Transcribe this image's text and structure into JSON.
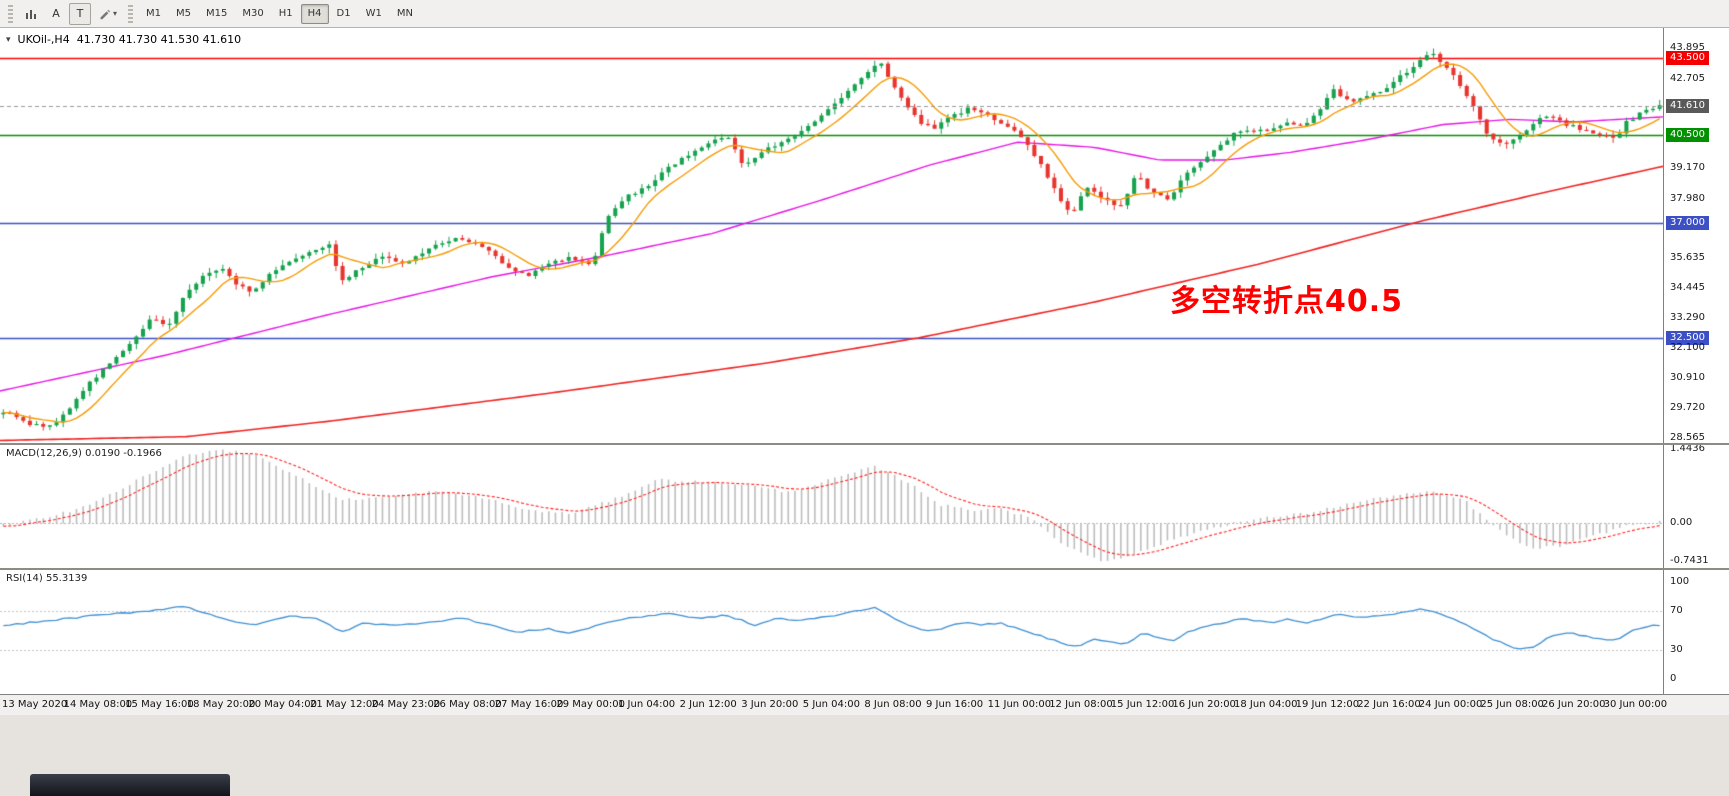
{
  "toolbar": {
    "cursor_label": "A",
    "text_label": "T",
    "timeframes": [
      {
        "label": "M1"
      },
      {
        "label": "M5"
      },
      {
        "label": "M15"
      },
      {
        "label": "M30"
      },
      {
        "label": "H1"
      },
      {
        "label": "H4",
        "active": true
      },
      {
        "label": "D1"
      },
      {
        "label": "W1"
      },
      {
        "label": "MN"
      }
    ]
  },
  "chart": {
    "symbol": "UKOil-,H4",
    "ohlc": "41.730 41.730 41.530 41.610",
    "current_price": "41.610",
    "annotation": {
      "text": "多空转折点40.5",
      "color": "#ff0000"
    }
  },
  "price_axis": {
    "labels": [
      {
        "text": "43.895",
        "value": 43.895,
        "style": "plain"
      },
      {
        "text": "43.500",
        "value": 43.5,
        "style": "red"
      },
      {
        "text": "42.705",
        "value": 42.705,
        "style": "plain"
      },
      {
        "text": "41.610",
        "value": 41.61,
        "style": "current"
      },
      {
        "text": "40.500",
        "value": 40.5,
        "style": "green"
      },
      {
        "text": "39.170",
        "value": 39.17,
        "style": "plain"
      },
      {
        "text": "37.980",
        "value": 37.98,
        "style": "plain"
      },
      {
        "text": "37.000",
        "value": 37.0,
        "style": "blue"
      },
      {
        "text": "35.635",
        "value": 35.635,
        "style": "plain"
      },
      {
        "text": "34.445",
        "value": 34.445,
        "style": "plain"
      },
      {
        "text": "33.290",
        "value": 33.29,
        "style": "plain"
      },
      {
        "text": "32.500",
        "value": 32.5,
        "style": "blue"
      },
      {
        "text": "32.100",
        "value": 32.1,
        "style": "plain"
      },
      {
        "text": "30.910",
        "value": 30.91,
        "style": "plain"
      },
      {
        "text": "29.720",
        "value": 29.72,
        "style": "plain"
      },
      {
        "text": "28.565",
        "value": 28.565,
        "style": "plain"
      }
    ]
  },
  "indicators": {
    "macd": {
      "label": "MACD(12,26,9) 0.0190 -0.1966",
      "axis": [
        {
          "text": "1.4436",
          "value": 1.4436,
          "style": "plain"
        },
        {
          "text": "0.00",
          "value": 0,
          "style": "plain"
        },
        {
          "text": "-0.7431",
          "value": -0.7431,
          "style": "plain"
        }
      ]
    },
    "rsi": {
      "label": "RSI(14) 55.3139",
      "axis": [
        {
          "text": "100",
          "value": 100,
          "style": "plain"
        },
        {
          "text": "70",
          "value": 70,
          "style": "plain"
        },
        {
          "text": "30",
          "value": 30,
          "style": "plain"
        },
        {
          "text": "0",
          "value": 0,
          "style": "plain"
        }
      ]
    }
  },
  "colors": {
    "candle_up": "#16a24e",
    "candle_down": "#e8342e",
    "price_line": "#9a9a9a",
    "macd_hist": "#bdbdbd",
    "macd_signal": "#ff2222",
    "rsi_line": "#3f8fd2",
    "rsi_levels": "#c4c4c4"
  },
  "chart_data": {
    "type": "candlestick",
    "symbol": "UKOil-",
    "timeframe": "H4",
    "ohlc": {
      "open": 41.73,
      "high": 41.73,
      "low": 41.53,
      "close": 41.61
    },
    "bars": 250,
    "scale_main": [
      28.35,
      44.7
    ],
    "price_path": [
      [
        0,
        29.6
      ],
      [
        15,
        29.1
      ],
      [
        30,
        29.0
      ],
      [
        40,
        29.7
      ],
      [
        50,
        30.6
      ],
      [
        60,
        31.2
      ],
      [
        72,
        32.0
      ],
      [
        82,
        32.6
      ],
      [
        89,
        33.3
      ],
      [
        99,
        32.9
      ],
      [
        108,
        34.0
      ],
      [
        118,
        34.8
      ],
      [
        132,
        35.3
      ],
      [
        141,
        34.6
      ],
      [
        151,
        34.3
      ],
      [
        164,
        35.2
      ],
      [
        178,
        35.7
      ],
      [
        188,
        36.0
      ],
      [
        197,
        36.2
      ],
      [
        204,
        34.7
      ],
      [
        217,
        35.3
      ],
      [
        230,
        35.7
      ],
      [
        243,
        35.4
      ],
      [
        257,
        36.0
      ],
      [
        266,
        36.3
      ],
      [
        276,
        36.4
      ],
      [
        289,
        36.1
      ],
      [
        303,
        35.4
      ],
      [
        316,
        34.9
      ],
      [
        329,
        35.4
      ],
      [
        342,
        35.7
      ],
      [
        355,
        35.3
      ],
      [
        365,
        37.3
      ],
      [
        375,
        38.0
      ],
      [
        388,
        38.4
      ],
      [
        401,
        39.2
      ],
      [
        414,
        39.7
      ],
      [
        428,
        40.2
      ],
      [
        438,
        40.4
      ],
      [
        447,
        39.3
      ],
      [
        460,
        39.9
      ],
      [
        474,
        40.3
      ],
      [
        487,
        40.9
      ],
      [
        500,
        41.6
      ],
      [
        513,
        42.4
      ],
      [
        523,
        43.0
      ],
      [
        530,
        43.35
      ],
      [
        536,
        42.6
      ],
      [
        543,
        41.9
      ],
      [
        553,
        41.0
      ],
      [
        562,
        40.7
      ],
      [
        572,
        41.2
      ],
      [
        582,
        41.5
      ],
      [
        592,
        41.3
      ],
      [
        602,
        41.0
      ],
      [
        612,
        40.6
      ],
      [
        625,
        39.5
      ],
      [
        635,
        38.3
      ],
      [
        645,
        37.3
      ],
      [
        654,
        38.5
      ],
      [
        664,
        38.0
      ],
      [
        674,
        37.6
      ],
      [
        684,
        38.9
      ],
      [
        694,
        38.2
      ],
      [
        704,
        37.9
      ],
      [
        714,
        39.0
      ],
      [
        724,
        39.5
      ],
      [
        733,
        40.0
      ],
      [
        743,
        40.5
      ],
      [
        753,
        40.7
      ],
      [
        763,
        40.6
      ],
      [
        773,
        41.0
      ],
      [
        783,
        40.8
      ],
      [
        793,
        41.3
      ],
      [
        803,
        42.3
      ],
      [
        812,
        41.8
      ],
      [
        822,
        42.0
      ],
      [
        832,
        42.2
      ],
      [
        842,
        42.7
      ],
      [
        852,
        43.2
      ],
      [
        862,
        43.7
      ],
      [
        868,
        43.4
      ],
      [
        878,
        42.6
      ],
      [
        888,
        41.6
      ],
      [
        895,
        40.6
      ],
      [
        904,
        40.1
      ],
      [
        914,
        40.3
      ],
      [
        924,
        41.0
      ],
      [
        934,
        41.3
      ],
      [
        944,
        40.9
      ],
      [
        954,
        40.7
      ],
      [
        964,
        40.5
      ],
      [
        973,
        40.3
      ],
      [
        980,
        41.0
      ],
      [
        990,
        41.4
      ],
      [
        1000,
        41.61
      ]
    ],
    "moving_averages": [
      {
        "name": "ma-fast",
        "color": "#f59a00"
      },
      {
        "name": "ma-medium",
        "color": "#e515e5",
        "path": [
          [
            0,
            30.4
          ],
          [
            99,
            31.8
          ],
          [
            197,
            33.4
          ],
          [
            296,
            34.9
          ],
          [
            362,
            35.7
          ],
          [
            428,
            36.6
          ],
          [
            493,
            37.9
          ],
          [
            559,
            39.3
          ],
          [
            612,
            40.2
          ],
          [
            658,
            40.0
          ],
          [
            697,
            39.5
          ],
          [
            737,
            39.5
          ],
          [
            776,
            39.8
          ],
          [
            822,
            40.3
          ],
          [
            868,
            40.9
          ],
          [
            908,
            41.1
          ],
          [
            947,
            41.0
          ],
          [
            1000,
            41.2
          ]
        ]
      },
      {
        "name": "ma-slow",
        "color": "#ee2222",
        "path": [
          [
            0,
            28.45
          ],
          [
            112,
            28.6
          ],
          [
            197,
            29.2
          ],
          [
            329,
            30.3
          ],
          [
            461,
            31.5
          ],
          [
            553,
            32.5
          ],
          [
            658,
            33.9
          ],
          [
            757,
            35.4
          ],
          [
            855,
            37.1
          ],
          [
            934,
            38.3
          ],
          [
            1000,
            39.25
          ]
        ]
      }
    ],
    "hlines": [
      {
        "price": 43.5,
        "color": "#ff0000"
      },
      {
        "price": 40.5,
        "color": "#009000"
      },
      {
        "price": 37.0,
        "color": "#3c4fc4"
      },
      {
        "price": 32.5,
        "color": "#3c4fc4"
      }
    ],
    "macd": {
      "params": "12,26,9",
      "main": 0.019,
      "signal": -0.1966,
      "scale": [
        -0.88,
        1.52
      ],
      "path": [
        [
          0,
          -0.05
        ],
        [
          26,
          0.1
        ],
        [
          53,
          0.35
        ],
        [
          79,
          0.8
        ],
        [
          109,
          1.3
        ],
        [
          128,
          1.44
        ],
        [
          151,
          1.35
        ],
        [
          178,
          0.9
        ],
        [
          204,
          0.45
        ],
        [
          230,
          0.5
        ],
        [
          260,
          0.62
        ],
        [
          289,
          0.5
        ],
        [
          316,
          0.25
        ],
        [
          342,
          0.18
        ],
        [
          368,
          0.45
        ],
        [
          395,
          0.85
        ],
        [
          421,
          0.8
        ],
        [
          447,
          0.75
        ],
        [
          474,
          0.6
        ],
        [
          500,
          0.85
        ],
        [
          526,
          1.1
        ],
        [
          546,
          0.8
        ],
        [
          566,
          0.35
        ],
        [
          586,
          0.25
        ],
        [
          602,
          0.3
        ],
        [
          622,
          0.05
        ],
        [
          641,
          -0.45
        ],
        [
          664,
          -0.75
        ],
        [
          684,
          -0.6
        ],
        [
          704,
          -0.35
        ],
        [
          724,
          -0.15
        ],
        [
          743,
          0.0
        ],
        [
          763,
          0.1
        ],
        [
          789,
          0.2
        ],
        [
          816,
          0.4
        ],
        [
          842,
          0.55
        ],
        [
          862,
          0.6
        ],
        [
          882,
          0.45
        ],
        [
          901,
          -0.1
        ],
        [
          921,
          -0.5
        ],
        [
          941,
          -0.45
        ],
        [
          961,
          -0.25
        ],
        [
          980,
          -0.05
        ],
        [
          1000,
          0.019
        ]
      ]
    },
    "rsi": {
      "period": 14,
      "value": 55.3139,
      "scale": [
        -15.4,
        112.4
      ],
      "levels": [
        70,
        30
      ],
      "path": [
        [
          0,
          55
        ],
        [
          53,
          65
        ],
        [
          86,
          70
        ],
        [
          109,
          75
        ],
        [
          138,
          60
        ],
        [
          151,
          55
        ],
        [
          171,
          65
        ],
        [
          191,
          62
        ],
        [
          204,
          48
        ],
        [
          217,
          58
        ],
        [
          237,
          55
        ],
        [
          263,
          60
        ],
        [
          276,
          63
        ],
        [
          296,
          55
        ],
        [
          309,
          48
        ],
        [
          329,
          52
        ],
        [
          342,
          47
        ],
        [
          368,
          60
        ],
        [
          388,
          65
        ],
        [
          401,
          68
        ],
        [
          421,
          62
        ],
        [
          434,
          66
        ],
        [
          447,
          60
        ],
        [
          454,
          55
        ],
        [
          467,
          63
        ],
        [
          480,
          60
        ],
        [
          500,
          65
        ],
        [
          520,
          72
        ],
        [
          526,
          74
        ],
        [
          536,
          65
        ],
        [
          546,
          55
        ],
        [
          556,
          50
        ],
        [
          566,
          52
        ],
        [
          579,
          58
        ],
        [
          592,
          56
        ],
        [
          602,
          58
        ],
        [
          615,
          50
        ],
        [
          625,
          45
        ],
        [
          638,
          38
        ],
        [
          648,
          33
        ],
        [
          658,
          42
        ],
        [
          668,
          38
        ],
        [
          678,
          36
        ],
        [
          688,
          48
        ],
        [
          697,
          42
        ],
        [
          707,
          40
        ],
        [
          717,
          50
        ],
        [
          727,
          55
        ],
        [
          737,
          58
        ],
        [
          747,
          62
        ],
        [
          757,
          60
        ],
        [
          766,
          58
        ],
        [
          776,
          62
        ],
        [
          786,
          58
        ],
        [
          796,
          62
        ],
        [
          806,
          68
        ],
        [
          816,
          63
        ],
        [
          829,
          65
        ],
        [
          842,
          68
        ],
        [
          855,
          72
        ],
        [
          862,
          70
        ],
        [
          875,
          62
        ],
        [
          888,
          52
        ],
        [
          898,
          42
        ],
        [
          908,
          35
        ],
        [
          914,
          30
        ],
        [
          924,
          33
        ],
        [
          934,
          45
        ],
        [
          944,
          48
        ],
        [
          954,
          44
        ],
        [
          964,
          42
        ],
        [
          974,
          40
        ],
        [
          984,
          50
        ],
        [
          993,
          55
        ],
        [
          1000,
          55.3
        ]
      ]
    },
    "x_labels": [
      "13 May 2020",
      "14 May 08:00",
      "15 May 16:00",
      "18 May 20:00",
      "20 May 04:00",
      "21 May 12:00",
      "24 May 23:00",
      "26 May 08:00",
      "27 May 16:00",
      "29 May 00:00",
      "1 Jun 04:00",
      "2 Jun 12:00",
      "3 Jun 20:00",
      "5 Jun 04:00",
      "8 Jun 08:00",
      "9 Jun 16:00",
      "11 Jun 00:00",
      "12 Jun 08:00",
      "15 Jun 12:00",
      "16 Jun 20:00",
      "18 Jun 04:00",
      "19 Jun 12:00",
      "22 Jun 16:00",
      "24 Jun 00:00",
      "25 Jun 08:00",
      "26 Jun 20:00",
      "30 Jun 00:00"
    ]
  }
}
